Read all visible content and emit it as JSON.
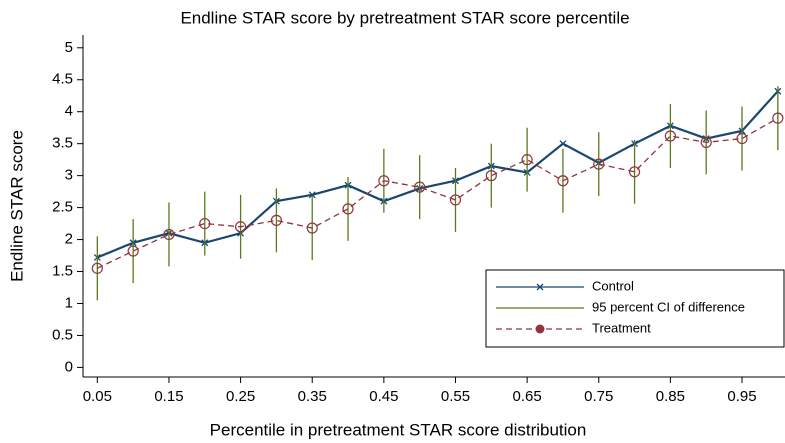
{
  "chart_data": {
    "type": "line",
    "title": "Endline STAR score by pretreatment STAR score percentile",
    "x_label": "Percentile in pretreatment STAR score distribution",
    "y_label": "Endline STAR score",
    "x": [
      0.05,
      0.1,
      0.15,
      0.2,
      0.25,
      0.3,
      0.35,
      0.4,
      0.45,
      0.5,
      0.55,
      0.6,
      0.65,
      0.7,
      0.75,
      0.8,
      0.85,
      0.9,
      0.95,
      1.0
    ],
    "series": [
      {
        "name": "Control",
        "color": "#1a476f",
        "marker": "x",
        "values": [
          1.72,
          1.95,
          2.1,
          1.95,
          2.1,
          2.6,
          2.7,
          2.85,
          2.6,
          2.8,
          2.92,
          3.15,
          3.05,
          3.5,
          3.2,
          3.5,
          3.78,
          3.58,
          3.7,
          4.32
        ]
      },
      {
        "name": "95 percent CI of difference",
        "color": "#5a7a1e",
        "kind": "range",
        "low": [
          1.05,
          1.32,
          1.58,
          1.75,
          1.7,
          1.8,
          1.68,
          1.98,
          2.42,
          2.32,
          2.12,
          2.5,
          2.75,
          2.42,
          2.68,
          2.56,
          3.12,
          3.02,
          3.08,
          3.4
        ],
        "high": [
          2.05,
          2.32,
          2.58,
          2.75,
          2.7,
          2.8,
          2.68,
          2.98,
          3.42,
          3.32,
          3.12,
          3.5,
          3.75,
          3.42,
          3.68,
          3.56,
          4.12,
          4.02,
          4.08,
          4.4
        ]
      },
      {
        "name": "Treatment",
        "color": "#90353b",
        "marker": "circle",
        "dashed": true,
        "values": [
          1.55,
          1.82,
          2.08,
          2.25,
          2.2,
          2.3,
          2.18,
          2.48,
          2.92,
          2.82,
          2.62,
          3.0,
          3.25,
          2.92,
          3.18,
          3.06,
          3.62,
          3.52,
          3.58,
          3.9
        ]
      }
    ],
    "xlim": [
      0.03,
      1.01
    ],
    "ylim": [
      -0.15,
      5.2
    ],
    "xticks": [
      0.05,
      0.15,
      0.25,
      0.35,
      0.45,
      0.55,
      0.65,
      0.75,
      0.85,
      0.95
    ],
    "yticks": [
      0,
      0.5,
      1,
      1.5,
      2,
      2.5,
      3,
      3.5,
      4,
      4.5,
      5
    ],
    "grid": false,
    "legend": "lower right"
  }
}
